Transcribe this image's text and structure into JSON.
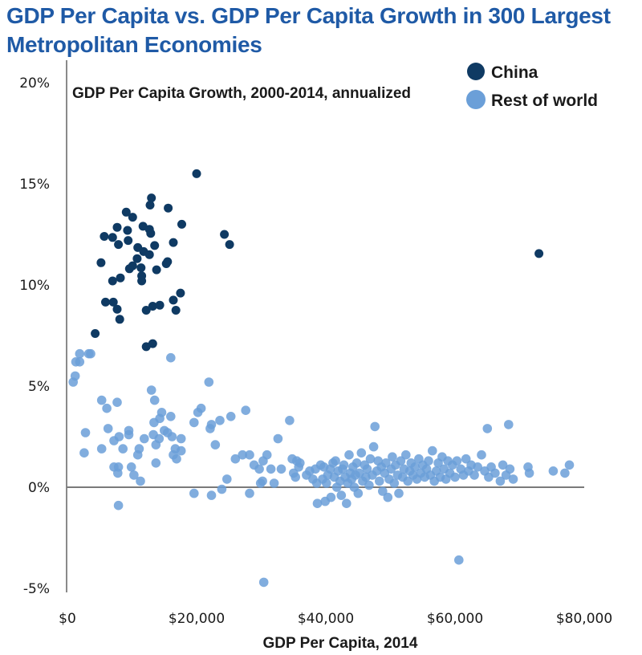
{
  "chart_data": {
    "type": "scatter",
    "title": "GDP Per Capita vs. GDP Per Capita Growth in 300 Largest Metropolitan Economies",
    "xlabel": "GDP Per Capita, 2014",
    "ylabel": "GDP Per Capita Growth, 2000-2014, annualized",
    "x_units": "thousand USD",
    "y_units": "percent",
    "xlim": [
      0,
      80
    ],
    "ylim": [
      -5,
      20
    ],
    "x_ticks": [
      0,
      20,
      40,
      60,
      80
    ],
    "x_tick_labels": [
      "$0",
      "$20,000",
      "$40,000",
      "$60,000",
      "$80,000"
    ],
    "y_ticks": [
      -5,
      0,
      5,
      10,
      15,
      20
    ],
    "y_tick_labels": [
      "-5%",
      "0%",
      "5%",
      "10%",
      "15%",
      "20%"
    ],
    "grid": false,
    "legend_position": "top-right",
    "series": [
      {
        "name": "China",
        "color": "#0f3a63",
        "points": [
          [
            73.0,
            11.55
          ],
          [
            20.0,
            15.5
          ],
          [
            13.0,
            14.3
          ],
          [
            5.7,
            12.4
          ],
          [
            12.8,
            13.95
          ],
          [
            15.6,
            13.8
          ],
          [
            17.7,
            13.0
          ],
          [
            24.3,
            12.5
          ],
          [
            25.1,
            12.0
          ],
          [
            9.1,
            13.6
          ],
          [
            10.1,
            13.35
          ],
          [
            11.7,
            12.9
          ],
          [
            12.7,
            12.75
          ],
          [
            12.9,
            12.55
          ],
          [
            7.7,
            12.85
          ],
          [
            7.0,
            12.35
          ],
          [
            7.9,
            12.0
          ],
          [
            9.3,
            12.7
          ],
          [
            9.4,
            12.2
          ],
          [
            11.8,
            11.65
          ],
          [
            12.7,
            11.5
          ],
          [
            13.5,
            11.95
          ],
          [
            15.5,
            11.15
          ],
          [
            16.4,
            12.1
          ],
          [
            5.2,
            11.1
          ],
          [
            10.9,
            11.85
          ],
          [
            10.8,
            11.3
          ],
          [
            10.1,
            10.95
          ],
          [
            9.6,
            10.8
          ],
          [
            11.4,
            10.85
          ],
          [
            11.5,
            10.45
          ],
          [
            11.5,
            10.2
          ],
          [
            13.8,
            10.75
          ],
          [
            15.3,
            11.05
          ],
          [
            7.0,
            10.2
          ],
          [
            8.2,
            10.35
          ],
          [
            17.5,
            9.6
          ],
          [
            16.4,
            9.25
          ],
          [
            16.8,
            8.75
          ],
          [
            5.9,
            9.15
          ],
          [
            7.1,
            9.15
          ],
          [
            7.7,
            8.8
          ],
          [
            8.1,
            8.3
          ],
          [
            12.2,
            8.75
          ],
          [
            13.2,
            8.95
          ],
          [
            14.3,
            9.0
          ],
          [
            4.3,
            7.6
          ],
          [
            12.2,
            6.95
          ],
          [
            13.2,
            7.1
          ]
        ]
      },
      {
        "name": "Rest of world",
        "color": "#6b9fd8",
        "points": [
          [
            0.9,
            5.2
          ],
          [
            1.2,
            5.5
          ],
          [
            1.3,
            6.2
          ],
          [
            1.9,
            6.2
          ],
          [
            1.9,
            6.6
          ],
          [
            3.3,
            6.6
          ],
          [
            3.6,
            6.6
          ],
          [
            16.0,
            6.4
          ],
          [
            2.8,
            2.7
          ],
          [
            2.6,
            1.7
          ],
          [
            5.3,
            4.3
          ],
          [
            5.3,
            1.9
          ],
          [
            6.1,
            3.9
          ],
          [
            6.3,
            2.9
          ],
          [
            7.2,
            2.3
          ],
          [
            7.2,
            1.0
          ],
          [
            7.7,
            4.2
          ],
          [
            7.9,
            1.0
          ],
          [
            7.8,
            0.7
          ],
          [
            8.0,
            2.5
          ],
          [
            7.9,
            -0.9
          ],
          [
            8.6,
            1.9
          ],
          [
            9.5,
            2.8
          ],
          [
            9.5,
            2.6
          ],
          [
            9.9,
            1.0
          ],
          [
            10.3,
            0.6
          ],
          [
            10.9,
            1.6
          ],
          [
            11.1,
            1.9
          ],
          [
            11.3,
            0.3
          ],
          [
            11.9,
            2.4
          ],
          [
            13.0,
            4.8
          ],
          [
            13.5,
            4.3
          ],
          [
            13.4,
            3.2
          ],
          [
            13.3,
            2.6
          ],
          [
            13.7,
            2.1
          ],
          [
            13.7,
            1.2
          ],
          [
            14.2,
            2.4
          ],
          [
            14.3,
            3.4
          ],
          [
            14.6,
            3.7
          ],
          [
            15.0,
            2.8
          ],
          [
            15.5,
            2.7
          ],
          [
            16.0,
            3.5
          ],
          [
            16.2,
            2.5
          ],
          [
            16.4,
            1.6
          ],
          [
            16.7,
            1.9
          ],
          [
            16.9,
            1.4
          ],
          [
            17.6,
            2.4
          ],
          [
            17.6,
            1.8
          ],
          [
            19.6,
            3.2
          ],
          [
            19.6,
            -0.3
          ],
          [
            20.2,
            3.7
          ],
          [
            20.7,
            3.9
          ],
          [
            21.9,
            5.2
          ],
          [
            22.1,
            2.9
          ],
          [
            22.3,
            3.1
          ],
          [
            22.3,
            -0.4
          ],
          [
            22.9,
            2.1
          ],
          [
            23.6,
            3.3
          ],
          [
            23.9,
            -0.1
          ],
          [
            24.7,
            0.4
          ],
          [
            25.3,
            3.5
          ],
          [
            26.0,
            1.4
          ],
          [
            27.1,
            1.6
          ],
          [
            27.6,
            3.8
          ],
          [
            28.2,
            1.6
          ],
          [
            28.2,
            -0.3
          ],
          [
            28.9,
            1.1
          ],
          [
            29.7,
            0.9
          ],
          [
            29.9,
            0.2
          ],
          [
            30.2,
            0.3
          ],
          [
            30.3,
            1.3
          ],
          [
            30.4,
            -4.7
          ],
          [
            30.9,
            1.6
          ],
          [
            31.5,
            0.9
          ],
          [
            32.0,
            0.2
          ],
          [
            32.6,
            2.4
          ],
          [
            33.1,
            0.9
          ],
          [
            34.4,
            3.3
          ],
          [
            34.8,
            1.4
          ],
          [
            35.0,
            0.7
          ],
          [
            35.3,
            0.5
          ],
          [
            35.5,
            1.3
          ],
          [
            35.8,
            1.0
          ],
          [
            36.0,
            1.2
          ],
          [
            37.0,
            0.6
          ],
          [
            37.5,
            0.8
          ],
          [
            38.0,
            0.4
          ],
          [
            38.4,
            0.9
          ],
          [
            38.6,
            0.2
          ],
          [
            38.7,
            -0.8
          ],
          [
            39.2,
            1.1
          ],
          [
            39.5,
            0.4
          ],
          [
            39.7,
            1.0
          ],
          [
            39.9,
            -0.7
          ],
          [
            40.1,
            0.2
          ],
          [
            40.3,
            0.6
          ],
          [
            40.7,
            0.9
          ],
          [
            40.8,
            -0.5
          ],
          [
            41.1,
            1.2
          ],
          [
            41.3,
            0.5
          ],
          [
            41.5,
            1.3
          ],
          [
            41.7,
            0.0
          ],
          [
            41.9,
            0.8
          ],
          [
            42.2,
            0.3
          ],
          [
            42.4,
            -0.4
          ],
          [
            42.6,
            0.9
          ],
          [
            42.8,
            1.1
          ],
          [
            43.0,
            0.5
          ],
          [
            43.2,
            -0.8
          ],
          [
            43.4,
            0.2
          ],
          [
            43.6,
            1.6
          ],
          [
            43.8,
            0.7
          ],
          [
            44.0,
            0.4
          ],
          [
            44.2,
            1.0
          ],
          [
            44.4,
            0.0
          ],
          [
            44.6,
            0.6
          ],
          [
            44.8,
            1.2
          ],
          [
            45.0,
            -0.3
          ],
          [
            45.2,
            0.7
          ],
          [
            45.5,
            1.7
          ],
          [
            45.7,
            0.3
          ],
          [
            46.0,
            1.1
          ],
          [
            46.2,
            0.5
          ],
          [
            46.4,
            0.9
          ],
          [
            46.7,
            0.1
          ],
          [
            46.9,
            1.4
          ],
          [
            47.2,
            0.6
          ],
          [
            47.4,
            2.0
          ],
          [
            47.6,
            3.0
          ],
          [
            47.9,
            0.8
          ],
          [
            48.1,
            1.3
          ],
          [
            48.3,
            0.3
          ],
          [
            48.6,
            1.0
          ],
          [
            48.8,
            -0.2
          ],
          [
            49.1,
            0.7
          ],
          [
            49.3,
            1.2
          ],
          [
            49.6,
            -0.5
          ],
          [
            49.8,
            0.4
          ],
          [
            50.1,
            0.9
          ],
          [
            50.3,
            1.5
          ],
          [
            50.6,
            0.2
          ],
          [
            50.8,
            1.1
          ],
          [
            51.1,
            0.6
          ],
          [
            51.3,
            -0.3
          ],
          [
            51.6,
            1.3
          ],
          [
            51.9,
            0.5
          ],
          [
            52.1,
            0.9
          ],
          [
            52.4,
            1.6
          ],
          [
            52.7,
            0.3
          ],
          [
            53.0,
            0.8
          ],
          [
            53.2,
            1.2
          ],
          [
            53.5,
            0.6
          ],
          [
            53.8,
            1.0
          ],
          [
            54.1,
            0.4
          ],
          [
            54.4,
            1.4
          ],
          [
            54.7,
            0.7
          ],
          [
            55.0,
            1.1
          ],
          [
            55.3,
            0.5
          ],
          [
            55.6,
            0.9
          ],
          [
            55.9,
            1.3
          ],
          [
            56.2,
            0.6
          ],
          [
            56.5,
            1.8
          ],
          [
            56.8,
            0.3
          ],
          [
            57.1,
            0.8
          ],
          [
            57.4,
            1.2
          ],
          [
            57.7,
            0.5
          ],
          [
            58.0,
            1.5
          ],
          [
            58.3,
            0.9
          ],
          [
            58.6,
            0.4
          ],
          [
            58.9,
            1.3
          ],
          [
            59.2,
            0.7
          ],
          [
            59.6,
            1.1
          ],
          [
            60.0,
            0.5
          ],
          [
            60.3,
            1.3
          ],
          [
            60.6,
            -3.6
          ],
          [
            60.9,
            0.9
          ],
          [
            61.3,
            0.6
          ],
          [
            61.7,
            1.4
          ],
          [
            62.1,
            0.8
          ],
          [
            62.5,
            1.1
          ],
          [
            63.0,
            0.6
          ],
          [
            63.5,
            1.0
          ],
          [
            64.1,
            1.6
          ],
          [
            64.6,
            0.8
          ],
          [
            65.0,
            2.9
          ],
          [
            65.2,
            0.5
          ],
          [
            65.6,
            1.0
          ],
          [
            66.2,
            0.7
          ],
          [
            67.0,
            0.3
          ],
          [
            67.4,
            1.1
          ],
          [
            67.9,
            0.6
          ],
          [
            68.3,
            3.1
          ],
          [
            68.5,
            0.9
          ],
          [
            69.0,
            0.4
          ],
          [
            71.3,
            1.0
          ],
          [
            71.5,
            0.7
          ],
          [
            75.2,
            0.8
          ],
          [
            77.0,
            0.7
          ],
          [
            77.7,
            1.1
          ]
        ]
      }
    ]
  }
}
